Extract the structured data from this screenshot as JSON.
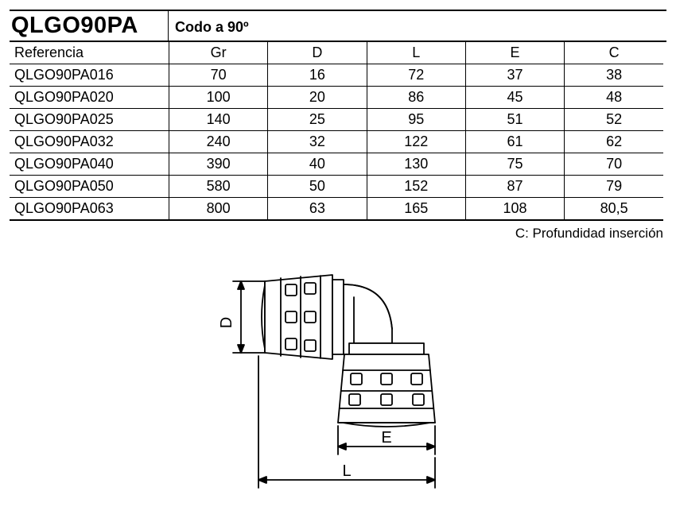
{
  "header": {
    "code": "QLGO90PA",
    "description": "Codo a 90º"
  },
  "table": {
    "columns": [
      "Referencia",
      "Gr",
      "D",
      "L",
      "E",
      "C"
    ],
    "rows": [
      [
        "QLGO90PA016",
        "70",
        "16",
        "72",
        "37",
        "38"
      ],
      [
        "QLGO90PA020",
        "100",
        "20",
        "86",
        "45",
        "48"
      ],
      [
        "QLGO90PA025",
        "140",
        "25",
        "95",
        "51",
        "52"
      ],
      [
        "QLGO90PA032",
        "240",
        "32",
        "122",
        "61",
        "62"
      ],
      [
        "QLGO90PA040",
        "390",
        "40",
        "130",
        "75",
        "70"
      ],
      [
        "QLGO90PA050",
        "580",
        "50",
        "152",
        "87",
        "79"
      ],
      [
        "QLGO90PA063",
        "800",
        "63",
        "165",
        "108",
        "80,5"
      ]
    ]
  },
  "footnote": "C: Profundidad inserción",
  "diagram": {
    "labels": {
      "D": "D",
      "E": "E",
      "L": "L"
    },
    "stroke": "#000000",
    "fill": "#ffffff"
  }
}
